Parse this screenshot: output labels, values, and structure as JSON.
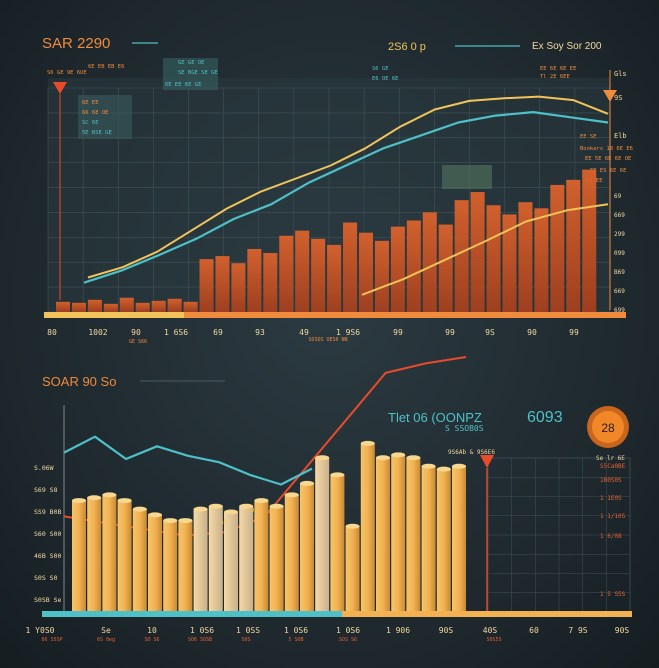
{
  "chart_data": [
    {
      "type": "bar",
      "title": "SAR 2290",
      "subtitle": "2S6 0 p",
      "legend_text": "Ex Soy Sor 200",
      "annotations": [
        "S6 GE 9E 6UE",
        "6E EB EB E6",
        "GE GE OE",
        "SE BGE SE GE",
        "6E EE 6E GE",
        "6E EE",
        "66 6E OE",
        "SC 6E",
        "5E BSE GE",
        "S6 GE",
        "E6 OE 6E",
        "EE 6E 6E EE",
        "Tl 2E 6EE",
        "EE SE",
        "Bookers 18 6E E6",
        "EE 5E 6E 6E OE",
        "EE ES 6E 6E",
        "GE EE"
      ],
      "x_tick_labels": [
        "80",
        "1002",
        "90",
        "1 6S6",
        "69",
        "93",
        "49",
        "1 9S6",
        "99",
        "99",
        "9S",
        "90",
        "99"
      ],
      "x_caption": "SOSOS OES0 NN",
      "x_caption_2": "GE S66",
      "y_tick_labels_right": [
        "69",
        "669",
        "299",
        "099",
        "B69",
        "669",
        "699"
      ],
      "right_labels": [
        "Gls",
        "9S",
        "Elb"
      ],
      "categories_count": 34,
      "series": [
        {
          "name": "bars",
          "values": [
            10,
            9,
            12,
            8,
            14,
            9,
            11,
            13,
            10,
            52,
            55,
            48,
            62,
            58,
            75,
            80,
            72,
            66,
            88,
            78,
            70,
            84,
            90,
            98,
            86,
            110,
            118,
            105,
            96,
            108,
            102,
            125,
            130,
            140
          ]
        },
        {
          "name": "yellow line",
          "values": [
            40,
            52,
            70,
            95,
            120,
            140,
            155,
            170,
            190,
            215,
            235,
            245,
            248,
            250,
            246,
            230
          ]
        },
        {
          "name": "teal line",
          "values": [
            34,
            48,
            66,
            85,
            108,
            125,
            150,
            170,
            190,
            205,
            220,
            228,
            232,
            226,
            220
          ]
        },
        {
          "name": "gold rising line",
          "values": [
            20,
            38,
            60,
            82,
            105,
            118,
            125
          ]
        }
      ],
      "ylim": [
        0,
        260
      ]
    },
    {
      "type": "bar",
      "title": "SOAR 90 So",
      "legend_text": "Tlet 06 (OONPZ",
      "legend_sub": "S SSOB0S",
      "value_display": "6093",
      "badge": "28",
      "marker_label": "9S6Ab & 9S6E6",
      "corner_label": "Se lr 6E",
      "y_tick_labels": [
        "S.06W",
        "S69 S8",
        "SS9 B0B",
        "S60 S00",
        "46B S00",
        "S0S S0",
        "S0SB Se"
      ],
      "right_axis_labels": [
        "S5Ca0BE",
        "1B0S0S",
        "1 1E0S",
        "1 1/10S",
        "1 6/08",
        "1 5 S5S"
      ],
      "x_tick_labels": [
        "1 Y0S0",
        "Se",
        "10",
        "1 0S6",
        "1 0SS",
        "1 0S6",
        "1 0S6",
        "1 906",
        "90S",
        "40S",
        "60",
        "7 9S",
        "90S"
      ],
      "x_sub_labels": [
        "06 S5SP",
        "6S 0eg",
        "SO S6",
        "SO6 SOSB",
        "S0S",
        "5 SOB",
        "SOS S6",
        "S0S5S"
      ],
      "values": [
        78,
        80,
        82,
        78,
        72,
        68,
        64,
        64,
        72,
        74,
        70,
        74,
        78,
        74,
        82,
        90,
        108,
        96,
        60,
        118,
        108,
        110,
        108,
        102,
        100,
        102
      ],
      "ylim": [
        0,
        140
      ],
      "series_lines": [
        {
          "name": "teal line",
          "values": [
            100,
            110,
            96,
            104,
            98,
            94,
            86,
            80,
            90
          ]
        },
        {
          "name": "red line",
          "values": [
            60,
            56,
            52,
            48,
            50,
            60,
            90,
            120,
            150,
            156,
            160
          ]
        }
      ]
    }
  ]
}
